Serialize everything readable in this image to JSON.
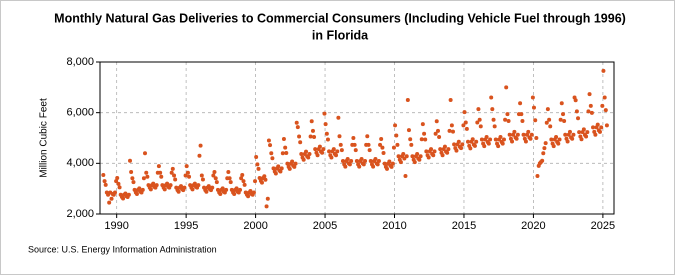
{
  "chart_data": {
    "type": "scatter",
    "title": [
      "Monthly Natural Gas Deliveries to Commercial Consumers (Including Vehicle Fuel through 1996)",
      "in Florida"
    ],
    "y_label": "Million Cubic Feet",
    "source": "Source: U.S. Energy Information Administration",
    "xlim": [
      1988.8,
      2025.8
    ],
    "xticks": [
      1990,
      1995,
      2000,
      2005,
      2010,
      2015,
      2020,
      2025
    ],
    "ylim": [
      2000,
      8000
    ],
    "yticks": [
      {
        "value": 2000,
        "label": "2,000"
      },
      {
        "value": 4000,
        "label": "4,000"
      },
      {
        "value": 6000,
        "label": "6,000"
      },
      {
        "value": 8000,
        "label": "8,000"
      }
    ],
    "grid": true,
    "series": [
      {
        "color": "#d9531e",
        "x": [
          1989.04,
          1989.13,
          1989.21,
          1989.29,
          1989.38,
          1989.46,
          1989.54,
          1989.63,
          1989.71,
          1989.79,
          1989.88,
          1989.96,
          1990.04,
          1990.13,
          1990.21,
          1990.29,
          1990.38,
          1990.46,
          1990.54,
          1990.63,
          1990.71,
          1990.79,
          1990.88,
          1990.96,
          1991.04,
          1991.13,
          1991.21,
          1991.29,
          1991.38,
          1991.46,
          1991.54,
          1991.63,
          1991.71,
          1991.79,
          1991.88,
          1991.96,
          1992.04,
          1992.13,
          1992.21,
          1992.29,
          1992.38,
          1992.46,
          1992.54,
          1992.63,
          1992.71,
          1992.79,
          1992.88,
          1992.96,
          1993.04,
          1993.13,
          1993.21,
          1993.29,
          1993.38,
          1993.46,
          1993.54,
          1993.63,
          1993.71,
          1993.79,
          1993.88,
          1993.96,
          1994.04,
          1994.13,
          1994.21,
          1994.29,
          1994.38,
          1994.46,
          1994.54,
          1994.63,
          1994.71,
          1994.79,
          1994.88,
          1994.96,
          1995.04,
          1995.13,
          1995.21,
          1995.29,
          1995.38,
          1995.46,
          1995.54,
          1995.63,
          1995.71,
          1995.79,
          1995.88,
          1995.96,
          1996.04,
          1996.13,
          1996.21,
          1996.29,
          1996.38,
          1996.46,
          1996.54,
          1996.63,
          1996.71,
          1996.79,
          1996.88,
          1996.96,
          1997.04,
          1997.13,
          1997.21,
          1997.29,
          1997.38,
          1997.46,
          1997.54,
          1997.63,
          1997.71,
          1997.79,
          1997.88,
          1997.96,
          1998.04,
          1998.13,
          1998.21,
          1998.29,
          1998.38,
          1998.46,
          1998.54,
          1998.63,
          1998.71,
          1998.79,
          1998.88,
          1998.96,
          1999.04,
          1999.13,
          1999.21,
          1999.29,
          1999.38,
          1999.46,
          1999.54,
          1999.63,
          1999.71,
          1999.79,
          1999.88,
          1999.96,
          2000.04,
          2000.13,
          2000.21,
          2000.29,
          2000.38,
          2000.46,
          2000.54,
          2000.63,
          2000.71,
          2000.79,
          2000.88,
          2000.96,
          2001.04,
          2001.13,
          2001.21,
          2001.29,
          2001.38,
          2001.46,
          2001.54,
          2001.63,
          2001.71,
          2001.79,
          2001.88,
          2001.96,
          2002.04,
          2002.13,
          2002.21,
          2002.29,
          2002.38,
          2002.46,
          2002.54,
          2002.63,
          2002.71,
          2002.79,
          2002.88,
          2002.96,
          2003.04,
          2003.13,
          2003.21,
          2003.29,
          2003.38,
          2003.46,
          2003.54,
          2003.63,
          2003.71,
          2003.79,
          2003.88,
          2003.96,
          2004.04,
          2004.13,
          2004.21,
          2004.29,
          2004.38,
          2004.46,
          2004.54,
          2004.63,
          2004.71,
          2004.79,
          2004.88,
          2004.96,
          2005.04,
          2005.13,
          2005.21,
          2005.29,
          2005.38,
          2005.46,
          2005.54,
          2005.63,
          2005.71,
          2005.79,
          2005.88,
          2005.96,
          2006.04,
          2006.13,
          2006.21,
          2006.29,
          2006.38,
          2006.46,
          2006.54,
          2006.63,
          2006.71,
          2006.79,
          2006.88,
          2006.96,
          2007.04,
          2007.13,
          2007.21,
          2007.29,
          2007.38,
          2007.46,
          2007.54,
          2007.63,
          2007.71,
          2007.79,
          2007.88,
          2007.96,
          2008.04,
          2008.13,
          2008.21,
          2008.29,
          2008.38,
          2008.46,
          2008.54,
          2008.63,
          2008.71,
          2008.79,
          2008.88,
          2008.96,
          2009.04,
          2009.13,
          2009.21,
          2009.29,
          2009.38,
          2009.46,
          2009.54,
          2009.63,
          2009.71,
          2009.79,
          2009.88,
          2009.96,
          2010.04,
          2010.13,
          2010.21,
          2010.29,
          2010.38,
          2010.46,
          2010.54,
          2010.63,
          2010.71,
          2010.79,
          2010.88,
          2010.96,
          2011.04,
          2011.13,
          2011.21,
          2011.29,
          2011.38,
          2011.46,
          2011.54,
          2011.63,
          2011.71,
          2011.79,
          2011.88,
          2011.96,
          2012.04,
          2012.13,
          2012.21,
          2012.29,
          2012.38,
          2012.46,
          2012.54,
          2012.63,
          2012.71,
          2012.79,
          2012.88,
          2012.96,
          2013.04,
          2013.13,
          2013.21,
          2013.29,
          2013.38,
          2013.46,
          2013.54,
          2013.63,
          2013.71,
          2013.79,
          2013.88,
          2013.96,
          2014.04,
          2014.13,
          2014.21,
          2014.29,
          2014.38,
          2014.46,
          2014.54,
          2014.63,
          2014.71,
          2014.79,
          2014.88,
          2014.96,
          2015.04,
          2015.13,
          2015.21,
          2015.29,
          2015.38,
          2015.46,
          2015.54,
          2015.63,
          2015.71,
          2015.79,
          2015.88,
          2015.96,
          2016.04,
          2016.13,
          2016.21,
          2016.29,
          2016.38,
          2016.46,
          2016.54,
          2016.63,
          2016.71,
          2016.79,
          2016.88,
          2016.96,
          2017.04,
          2017.13,
          2017.21,
          2017.29,
          2017.38,
          2017.46,
          2017.54,
          2017.63,
          2017.71,
          2017.79,
          2017.88,
          2017.96,
          2018.04,
          2018.13,
          2018.21,
          2018.29,
          2018.38,
          2018.46,
          2018.54,
          2018.63,
          2018.71,
          2018.79,
          2018.88,
          2018.96,
          2019.04,
          2019.13,
          2019.21,
          2019.29,
          2019.38,
          2019.46,
          2019.54,
          2019.63,
          2019.71,
          2019.79,
          2019.88,
          2019.96,
          2020.04,
          2020.13,
          2020.21,
          2020.29,
          2020.38,
          2020.46,
          2020.54,
          2020.63,
          2020.71,
          2020.79,
          2020.88,
          2020.96,
          2021.04,
          2021.13,
          2021.21,
          2021.29,
          2021.38,
          2021.46,
          2021.54,
          2021.63,
          2021.71,
          2021.79,
          2021.88,
          2021.96,
          2022.04,
          2022.13,
          2022.21,
          2022.29,
          2022.38,
          2022.46,
          2022.54,
          2022.63,
          2022.71,
          2022.79,
          2022.88,
          2022.96,
          2023.04,
          2023.13,
          2023.21,
          2023.29,
          2023.38,
          2023.46,
          2023.54,
          2023.63,
          2023.71,
          2023.79,
          2023.88,
          2023.96,
          2024.04,
          2024.13,
          2024.21,
          2024.29,
          2024.38,
          2024.46,
          2024.54,
          2024.63,
          2024.71,
          2024.79,
          2024.88,
          2024.96,
          2025.04,
          2025.13,
          2025.21,
          2025.29
        ],
        "values": [
          3540,
          3300,
          3150,
          2850,
          2760,
          2450,
          2850,
          2600,
          2790,
          2760,
          2850,
          3300,
          3420,
          3190,
          3050,
          2760,
          2670,
          2610,
          2760,
          2810,
          2700,
          2670,
          2760,
          4100,
          3660,
          3410,
          3260,
          2950,
          2850,
          2790,
          2950,
          3010,
          2880,
          2850,
          2950,
          3410,
          4400,
          3630,
          3470,
          3140,
          3040,
          2970,
          3140,
          3200,
          3070,
          3040,
          3140,
          3630,
          3890,
          3630,
          3470,
          3140,
          3040,
          2970,
          3140,
          3200,
          3070,
          3040,
          3140,
          3630,
          3780,
          3520,
          3360,
          3040,
          2940,
          2880,
          3040,
          3100,
          2980,
          2940,
          3040,
          3520,
          3890,
          3630,
          3470,
          3140,
          3040,
          2970,
          3140,
          3200,
          3070,
          3040,
          3140,
          4300,
          4700,
          3520,
          3360,
          3040,
          2940,
          2880,
          3040,
          3100,
          2980,
          2940,
          3040,
          3520,
          3660,
          3410,
          3260,
          2950,
          2850,
          2790,
          2950,
          3010,
          2880,
          2850,
          2950,
          3410,
          3660,
          3410,
          3260,
          2950,
          2850,
          2790,
          2950,
          3010,
          2880,
          2850,
          2950,
          3410,
          3540,
          3300,
          3150,
          2850,
          2760,
          2700,
          2850,
          2910,
          2790,
          2760,
          2850,
          3300,
          4250,
          3960,
          3780,
          3420,
          3310,
          3240,
          3420,
          3490,
          3350,
          2300,
          2600,
          4900,
          4720,
          4400,
          4200,
          3800,
          3680,
          3600,
          3800,
          3880,
          3720,
          3680,
          3800,
          4400,
          4960,
          4620,
          4410,
          3990,
          3860,
          3780,
          3990,
          4070,
          3910,
          3860,
          3990,
          5600,
          5430,
          5060,
          4830,
          4370,
          4230,
          4140,
          4370,
          4460,
          4280,
          4230,
          4370,
          5060,
          5660,
          5280,
          5040,
          4560,
          4420,
          4320,
          4560,
          4660,
          4460,
          4420,
          4560,
          5960,
          5550,
          5170,
          4940,
          4470,
          4320,
          4230,
          4470,
          4560,
          4370,
          4320,
          4470,
          5800,
          5070,
          4730,
          4520,
          4090,
          3960,
          3870,
          4090,
          4170,
          4000,
          3960,
          4090,
          4730,
          5000,
          4730,
          4520,
          4090,
          3960,
          3870,
          4090,
          4170,
          4000,
          3960,
          4090,
          4730,
          5070,
          4730,
          4520,
          4090,
          3960,
          3870,
          4090,
          4170,
          4000,
          3960,
          4090,
          4730,
          4960,
          4620,
          4410,
          3990,
          3860,
          3780,
          3990,
          4070,
          3910,
          3860,
          3990,
          4620,
          5500,
          5100,
          4730,
          4280,
          4140,
          4050,
          4280,
          4370,
          4190,
          3500,
          4280,
          6500,
          5310,
          4950,
          4730,
          4280,
          4140,
          4050,
          4280,
          4370,
          4190,
          4140,
          4280,
          4950,
          5550,
          5170,
          4940,
          4470,
          4320,
          4230,
          4470,
          4560,
          4370,
          4320,
          4470,
          5170,
          5660,
          5280,
          5040,
          4560,
          4420,
          4320,
          4560,
          4660,
          4460,
          4420,
          4560,
          5280,
          6500,
          5500,
          5250,
          4750,
          4600,
          4500,
          4750,
          4850,
          4650,
          4600,
          4750,
          5500,
          6020,
          5610,
          5360,
          4850,
          4690,
          4590,
          4850,
          4950,
          4740,
          4690,
          4850,
          5610,
          6140,
          5720,
          5460,
          4940,
          4780,
          4680,
          4940,
          5040,
          4840,
          4780,
          4940,
          6600,
          6140,
          5720,
          5460,
          4940,
          4780,
          4680,
          4940,
          5040,
          4840,
          4780,
          4940,
          5720,
          7000,
          5940,
          5670,
          5130,
          4970,
          4860,
          5130,
          5240,
          5020,
          4970,
          5130,
          5940,
          6370,
          5940,
          5670,
          5130,
          4970,
          4860,
          5130,
          5240,
          5020,
          4970,
          5130,
          6600,
          6200,
          5700,
          5000,
          3500,
          3900,
          4000,
          4050,
          4100,
          4400,
          4600,
          4800,
          5600,
          6140,
          5720,
          5460,
          4940,
          4780,
          4680,
          4940,
          5040,
          4840,
          4780,
          4940,
          5720,
          6370,
          5940,
          5670,
          5130,
          4970,
          4860,
          5130,
          5240,
          5020,
          4970,
          5130,
          6600,
          6490,
          6050,
          5780,
          5230,
          5060,
          4950,
          5230,
          5340,
          5120,
          5060,
          5230,
          6050,
          6730,
          6270,
          5990,
          5420,
          5240,
          5130,
          5420,
          5530,
          5300,
          5240,
          5420,
          6270,
          7650,
          6600,
          6100,
          5500
        ]
      }
    ]
  }
}
